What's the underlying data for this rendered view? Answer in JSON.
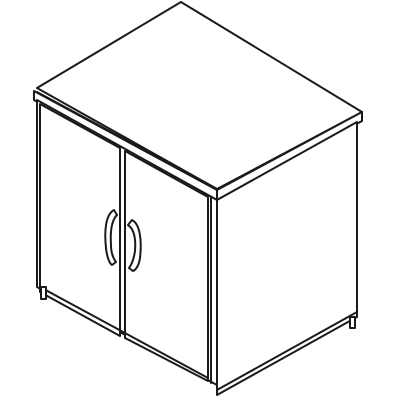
{
  "image": {
    "subject": "line-drawing",
    "colors": {
      "background": "#ffffff",
      "line": "#1a1a1a",
      "handle_fill": "#ffffff"
    },
    "icon": "storage-cabinet-icon"
  }
}
